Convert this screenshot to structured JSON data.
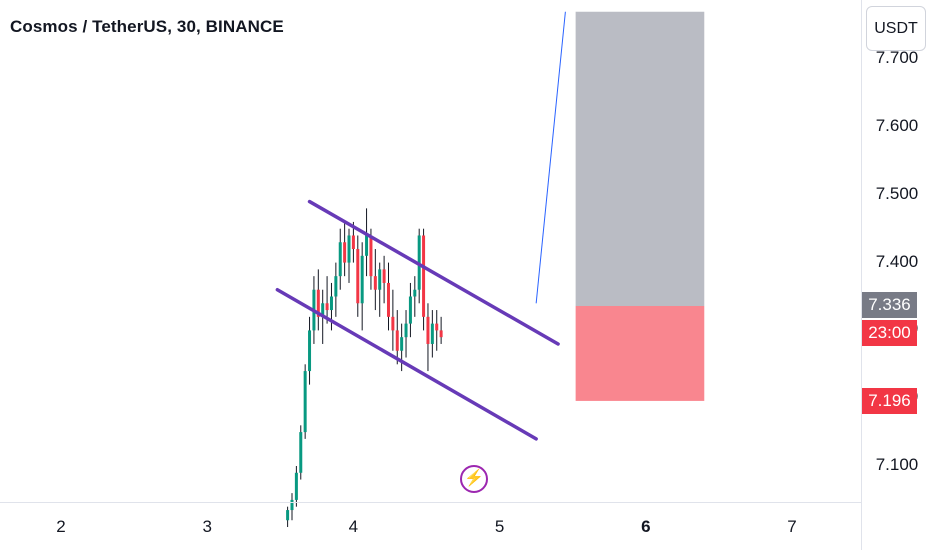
{
  "header": {
    "title": "Cosmos / TetherUS, 30, BINANCE"
  },
  "currency_button": {
    "label": "USDT"
  },
  "price_badges": [
    {
      "label": "7.336",
      "color": "#787b86"
    },
    {
      "label": "23:00",
      "color": "#f23645"
    },
    {
      "label": "7.196",
      "color": "#f23645"
    }
  ],
  "colors": {
    "up": "#089981",
    "down": "#f23645",
    "channel": "#673ab7",
    "projection": "#2962ff",
    "target_zone": "#b2b5be",
    "stop_zone": "#f7525f"
  },
  "icons": {
    "event": "lightning-icon"
  },
  "chart_data": {
    "type": "candlestick",
    "title": "Cosmos / TetherUS, 30, BINANCE",
    "x_ticks": [
      "2",
      "3",
      "4",
      "5",
      "6",
      "7"
    ],
    "y_ticks": [
      "7.100",
      "7.200",
      "7.300",
      "7.400",
      "7.500",
      "7.600",
      "7.700"
    ],
    "ylim": [
      7.05,
      7.77
    ],
    "last_price": 7.336,
    "countdown": "23:00",
    "stop_level": 7.196,
    "candles": [
      [
        3.55,
        7.02,
        7.04,
        7.01,
        7.035
      ],
      [
        3.58,
        7.035,
        7.06,
        7.02,
        7.05
      ],
      [
        3.61,
        7.05,
        7.1,
        7.04,
        7.09
      ],
      [
        3.64,
        7.09,
        7.16,
        7.08,
        7.15
      ],
      [
        3.67,
        7.15,
        7.25,
        7.14,
        7.24
      ],
      [
        3.7,
        7.24,
        7.32,
        7.22,
        7.3
      ],
      [
        3.73,
        7.3,
        7.38,
        7.28,
        7.36
      ],
      [
        3.76,
        7.36,
        7.39,
        7.3,
        7.32
      ],
      [
        3.79,
        7.32,
        7.36,
        7.28,
        7.34
      ],
      [
        3.82,
        7.34,
        7.38,
        7.31,
        7.33
      ],
      [
        3.85,
        7.33,
        7.37,
        7.3,
        7.35
      ],
      [
        3.88,
        7.35,
        7.4,
        7.32,
        7.38
      ],
      [
        3.91,
        7.38,
        7.45,
        7.36,
        7.43
      ],
      [
        3.94,
        7.43,
        7.46,
        7.38,
        7.4
      ],
      [
        3.97,
        7.4,
        7.45,
        7.37,
        7.44
      ],
      [
        4.0,
        7.44,
        7.46,
        7.4,
        7.42
      ],
      [
        4.03,
        7.42,
        7.44,
        7.32,
        7.34
      ],
      [
        4.06,
        7.34,
        7.43,
        7.3,
        7.41
      ],
      [
        4.09,
        7.41,
        7.48,
        7.38,
        7.44
      ],
      [
        4.12,
        7.44,
        7.45,
        7.36,
        7.38
      ],
      [
        4.15,
        7.38,
        7.42,
        7.33,
        7.36
      ],
      [
        4.18,
        7.36,
        7.4,
        7.32,
        7.39
      ],
      [
        4.21,
        7.39,
        7.41,
        7.34,
        7.37
      ],
      [
        4.24,
        7.37,
        7.4,
        7.3,
        7.32
      ],
      [
        4.27,
        7.32,
        7.36,
        7.27,
        7.3
      ],
      [
        4.3,
        7.3,
        7.33,
        7.25,
        7.27
      ],
      [
        4.33,
        7.27,
        7.31,
        7.24,
        7.29
      ],
      [
        4.36,
        7.29,
        7.33,
        7.26,
        7.31
      ],
      [
        4.39,
        7.31,
        7.37,
        7.29,
        7.35
      ],
      [
        4.42,
        7.35,
        7.38,
        7.32,
        7.36
      ],
      [
        4.45,
        7.36,
        7.45,
        7.34,
        7.44
      ],
      [
        4.48,
        7.44,
        7.45,
        7.3,
        7.32
      ],
      [
        4.51,
        7.32,
        7.34,
        7.24,
        7.28
      ],
      [
        4.54,
        7.28,
        7.33,
        7.26,
        7.31
      ],
      [
        4.57,
        7.31,
        7.33,
        7.27,
        7.3
      ],
      [
        4.6,
        7.3,
        7.32,
        7.28,
        7.29
      ]
    ],
    "channel_upper": [
      [
        3.7,
        7.49
      ],
      [
        5.4,
        7.28
      ]
    ],
    "channel_lower": [
      [
        3.48,
        7.36
      ],
      [
        5.25,
        7.14
      ]
    ],
    "projection": [
      [
        5.25,
        7.34
      ],
      [
        5.45,
        7.77
      ]
    ],
    "target_zone": {
      "x": [
        5.52,
        6.4
      ],
      "y": [
        7.336,
        7.77
      ]
    },
    "stop_zone": {
      "x": [
        5.52,
        6.4
      ],
      "y": [
        7.196,
        7.336
      ]
    }
  }
}
